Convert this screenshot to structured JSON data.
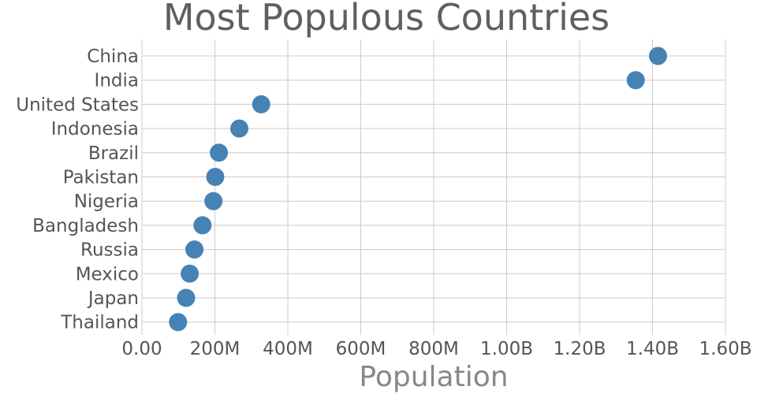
{
  "chart_data": {
    "type": "scatter",
    "title": "Most Populous Countries",
    "xlabel": "Population",
    "ylabel": "",
    "xlim": [
      0,
      1600000000
    ],
    "x_ticks": [
      {
        "value": 0,
        "label": "0.00"
      },
      {
        "value": 200000000,
        "label": "200M"
      },
      {
        "value": 400000000,
        "label": "400M"
      },
      {
        "value": 600000000,
        "label": "600M"
      },
      {
        "value": 800000000,
        "label": "800M"
      },
      {
        "value": 1000000000,
        "label": "1.00B"
      },
      {
        "value": 1200000000,
        "label": "1.20B"
      },
      {
        "value": 1400000000,
        "label": "1.40B"
      },
      {
        "value": 1600000000,
        "label": "1.60B"
      }
    ],
    "categories": [
      "China",
      "India",
      "United States",
      "Indonesia",
      "Brazil",
      "Pakistan",
      "Nigeria",
      "Bangladesh",
      "Russia",
      "Mexico",
      "Japan",
      "Thailand"
    ],
    "values": [
      1415000000,
      1354000000,
      327000000,
      267000000,
      211000000,
      201000000,
      196000000,
      166000000,
      144000000,
      131000000,
      121000000,
      99000000
    ],
    "point_color": "#4682b4",
    "grid": true,
    "legend": "none"
  }
}
